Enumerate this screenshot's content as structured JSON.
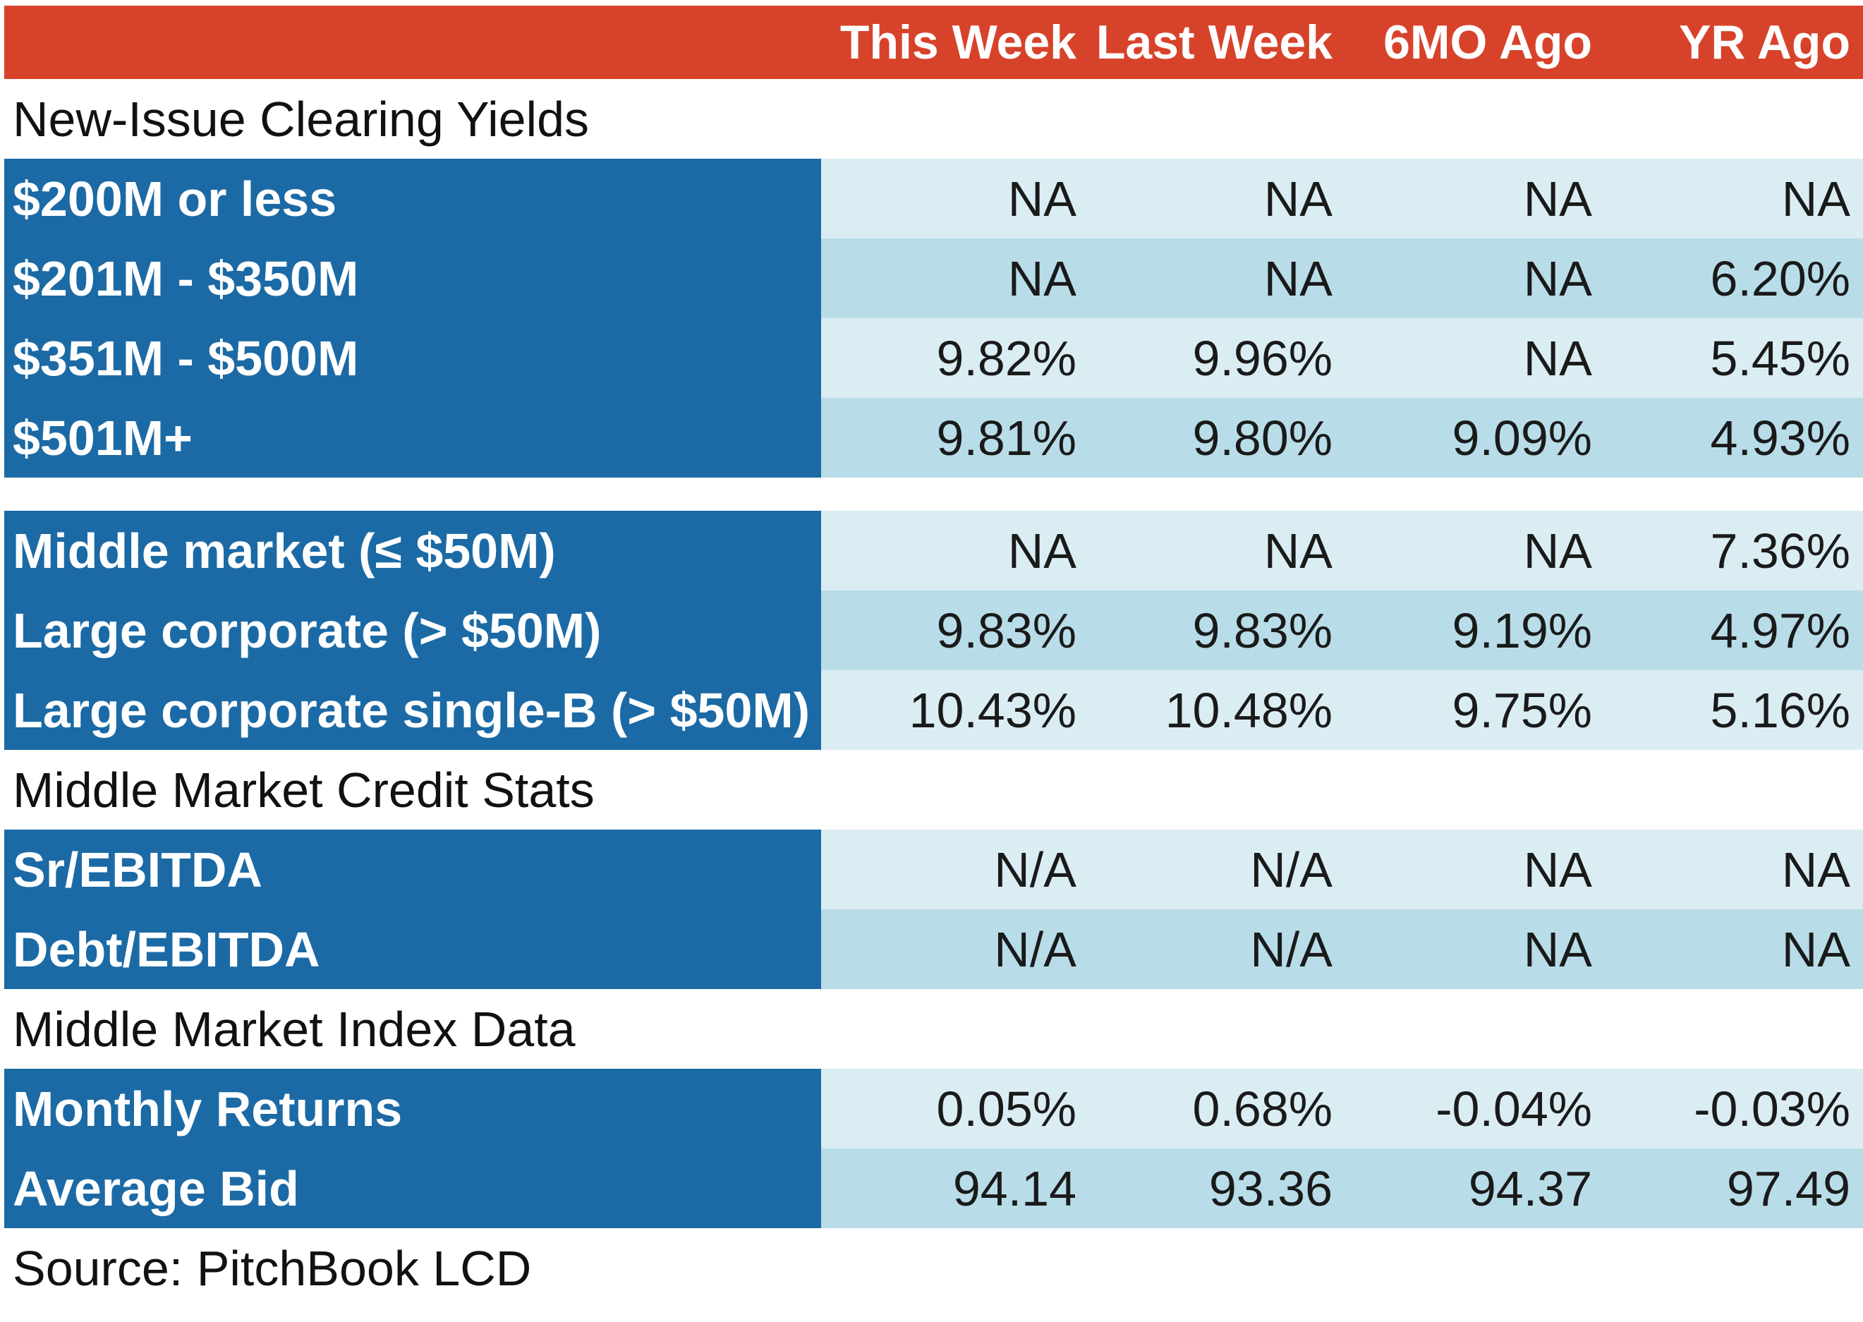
{
  "chart_data": {
    "type": "table",
    "columns": [
      "This Week",
      "Last Week",
      "6MO Ago",
      "YR Ago"
    ],
    "sections": [
      {
        "title": "New-Issue Clearing Yields",
        "rows": [
          {
            "label": "$200M or less",
            "values": [
              "NA",
              "NA",
              "NA",
              "NA"
            ]
          },
          {
            "label": "$201M - $350M",
            "values": [
              "NA",
              "NA",
              "NA",
              "6.20%"
            ]
          },
          {
            "label": "$351M - $500M",
            "values": [
              "9.82%",
              "9.96%",
              "NA",
              "5.45%"
            ]
          },
          {
            "label": "$501M+",
            "values": [
              "9.81%",
              "9.80%",
              "9.09%",
              "4.93%"
            ]
          }
        ]
      },
      {
        "title": "",
        "rows": [
          {
            "label": "Middle market (≤ $50M)",
            "values": [
              "NA",
              "NA",
              "NA",
              "7.36%"
            ]
          },
          {
            "label": "Large corporate (> $50M)",
            "values": [
              "9.83%",
              "9.83%",
              "9.19%",
              "4.97%"
            ]
          },
          {
            "label": "Large corporate single-B (> $50M)",
            "values": [
              "10.43%",
              "10.48%",
              "9.75%",
              "5.16%"
            ]
          }
        ]
      },
      {
        "title": "Middle Market Credit Stats",
        "rows": [
          {
            "label": "Sr/EBITDA",
            "values": [
              "N/A",
              "N/A",
              "NA",
              "NA"
            ]
          },
          {
            "label": "Debt/EBITDA",
            "values": [
              "N/A",
              "N/A",
              "NA",
              "NA"
            ]
          }
        ]
      },
      {
        "title": "Middle Market Index Data",
        "rows": [
          {
            "label": "Monthly Returns",
            "values": [
              "0.05%",
              "0.68%",
              "-0.04%",
              "-0.03%"
            ]
          },
          {
            "label": "Average Bid",
            "values": [
              "94.14",
              "93.36",
              "94.37",
              "97.49"
            ]
          }
        ]
      }
    ],
    "source": "Source: PitchBook LCD"
  },
  "colors": {
    "header_bg": "#d7432a",
    "label_bg": "#1b6aa5",
    "cell_light": "#daedf3",
    "cell_dark": "#b8dde8"
  }
}
